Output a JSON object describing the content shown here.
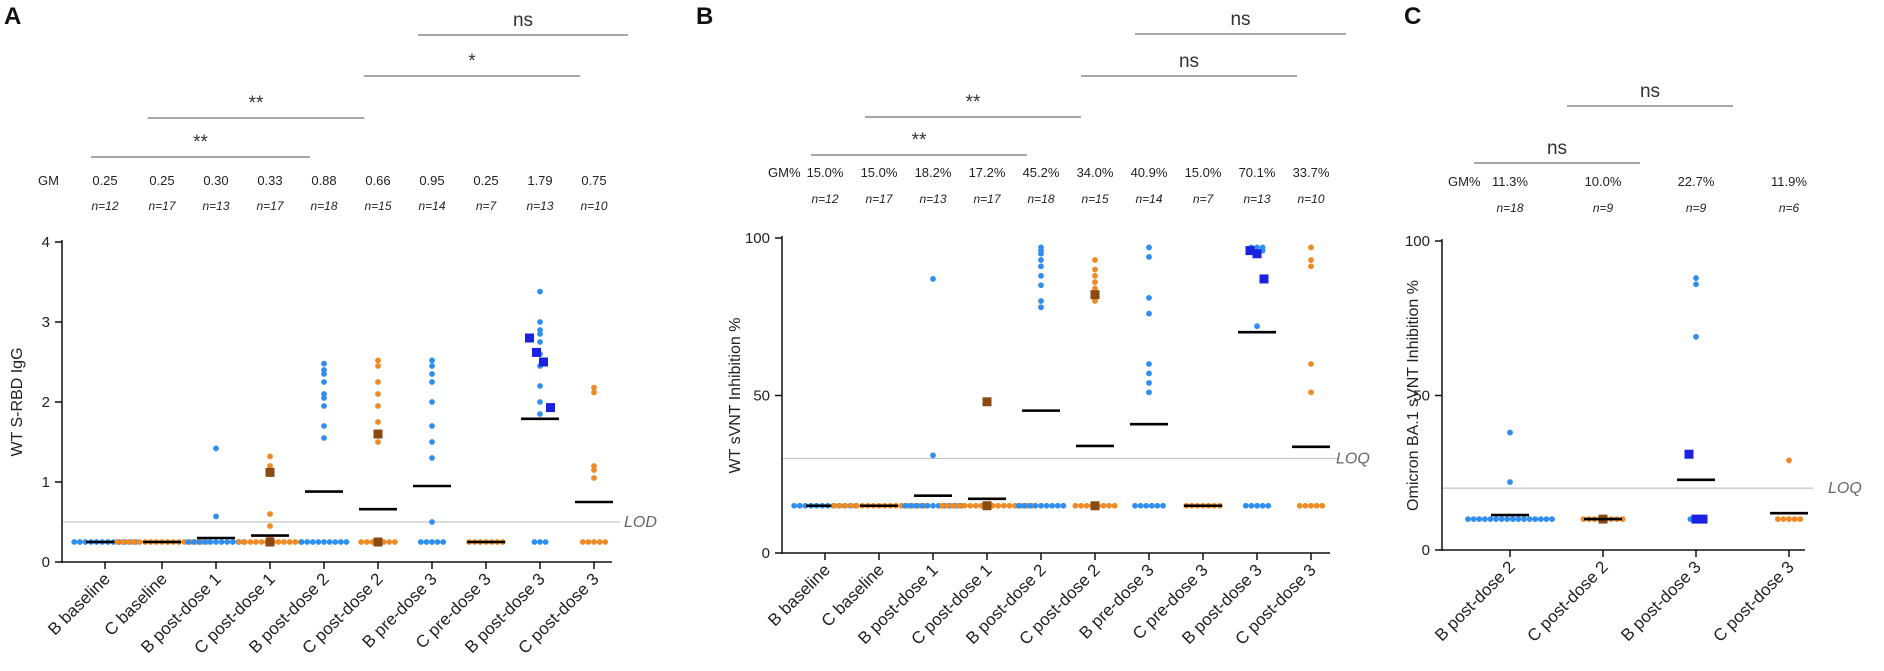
{
  "colors": {
    "b_point": "#2f8ff0",
    "c_point": "#f08a24",
    "b_square": "#1a22e0",
    "c_square": "#8a4a12",
    "mean": "#000000",
    "limit": "#c8c8c8",
    "bracket": "#8a8a8a"
  },
  "chart_data": [
    {
      "panel": "A",
      "type": "scatter",
      "ylabel": "WT S-RBD IgG",
      "ylim": [
        0,
        4
      ],
      "yticks": [
        0,
        1,
        2,
        3,
        4
      ],
      "stat_label": "GM",
      "categories": [
        "B baseline",
        "C baseline",
        "B post-dose 1",
        "C post-dose 1",
        "B post-dose 2",
        "C post-dose 2",
        "B pre-dose 3",
        "C pre-dose 3",
        "B post-dose 3",
        "C post-dose 3"
      ],
      "groups": [
        "B",
        "C",
        "B",
        "C",
        "B",
        "C",
        "B",
        "C",
        "B",
        "C"
      ],
      "stats": [
        "0.25",
        "0.25",
        "0.30",
        "0.33",
        "0.88",
        "0.66",
        "0.95",
        "0.25",
        "1.79",
        "0.75"
      ],
      "n": [
        "n=12",
        "n=17",
        "n=13",
        "n=17",
        "n=18",
        "n=15",
        "n=14",
        "n=7",
        "n=13",
        "n=10"
      ],
      "means": [
        0.25,
        0.25,
        0.3,
        0.33,
        0.88,
        0.66,
        0.95,
        0.25,
        1.79,
        0.75
      ],
      "limit_line": {
        "label": "LOD",
        "value": 0.5
      },
      "points": [
        [
          0.25,
          0.25,
          0.25,
          0.25,
          0.25,
          0.25,
          0.25,
          0.25,
          0.25,
          0.25,
          0.25,
          0.25
        ],
        [
          0.25,
          0.25,
          0.25,
          0.25,
          0.25,
          0.25,
          0.25,
          0.25,
          0.25,
          0.25,
          0.25,
          0.25,
          0.25,
          0.25,
          0.25,
          0.25,
          0.25
        ],
        [
          1.42,
          0.57,
          0.25,
          0.25,
          0.25,
          0.25,
          0.25,
          0.25,
          0.25,
          0.25,
          0.25,
          0.25,
          0.25
        ],
        [
          1.32,
          1.2,
          0.6,
          0.45,
          0.3,
          0.25,
          0.25,
          0.25,
          0.25,
          0.25,
          0.25,
          0.25,
          0.25,
          0.25,
          0.25,
          0.25,
          0.25
        ],
        [
          2.48,
          2.4,
          2.35,
          2.25,
          2.1,
          2.05,
          1.95,
          1.7,
          1.55,
          0.25,
          0.25,
          0.25,
          0.25,
          0.25,
          0.25,
          0.25,
          0.25,
          0.25
        ],
        [
          2.52,
          2.45,
          2.25,
          2.1,
          1.95,
          1.75,
          1.6,
          1.5,
          0.25,
          0.25,
          0.25,
          0.25,
          0.25,
          0.25,
          0.25
        ],
        [
          2.52,
          2.45,
          2.35,
          2.25,
          2.0,
          1.7,
          1.5,
          1.3,
          0.5,
          0.25,
          0.25,
          0.25,
          0.25,
          0.25
        ],
        [
          0.25,
          0.25,
          0.25,
          0.25,
          0.25,
          0.25,
          0.25
        ],
        [
          3.38,
          3.0,
          2.9,
          2.85,
          2.75,
          2.6,
          2.45,
          2.2,
          2.0,
          1.85,
          0.25,
          0.25,
          0.25
        ],
        [
          2.18,
          2.12,
          1.2,
          1.15,
          1.05,
          0.25,
          0.25,
          0.25,
          0.25,
          0.25
        ]
      ],
      "squares": [
        [],
        [],
        [],
        [
          1.12,
          0.25
        ],
        [],
        [
          1.6,
          0.25
        ],
        [],
        [],
        [
          2.8,
          2.62,
          2.5,
          1.93
        ],
        []
      ],
      "comparisons": [
        {
          "from": 0,
          "to": 4,
          "label": "**"
        },
        {
          "from": 1,
          "to": 5,
          "label": "**"
        },
        {
          "from": 5,
          "to": 9,
          "label": "*"
        },
        {
          "from": 6,
          "to": 10,
          "label": "ns"
        }
      ]
    },
    {
      "panel": "B",
      "type": "scatter",
      "ylabel": "WT sVNT Inhibition %",
      "ylim": [
        0,
        100
      ],
      "yticks": [
        0,
        50,
        100
      ],
      "stat_label": "GM%",
      "categories": [
        "B baseline",
        "C baseline",
        "B post-dose 1",
        "C post-dose 1",
        "B post-dose 2",
        "C post-dose 2",
        "B pre-dose 3",
        "C pre-dose 3",
        "B post-dose 3",
        "C post-dose 3"
      ],
      "groups": [
        "B",
        "C",
        "B",
        "C",
        "B",
        "C",
        "B",
        "C",
        "B",
        "C"
      ],
      "stats": [
        "15.0%",
        "15.0%",
        "18.2%",
        "17.2%",
        "45.2%",
        "34.0%",
        "40.9%",
        "15.0%",
        "70.1%",
        "33.7%"
      ],
      "n": [
        "n=12",
        "n=17",
        "n=13",
        "n=17",
        "n=18",
        "n=15",
        "n=14",
        "n=7",
        "n=13",
        "n=10"
      ],
      "means": [
        15.0,
        15.0,
        18.2,
        17.2,
        45.2,
        34.0,
        40.9,
        15.0,
        70.1,
        33.7
      ],
      "limit_line": {
        "label": "LOQ",
        "value": 30
      },
      "points": [
        [
          15,
          15,
          15,
          15,
          15,
          15,
          15,
          15,
          15,
          15,
          15,
          15
        ],
        [
          15,
          15,
          15,
          15,
          15,
          15,
          15,
          15,
          15,
          15,
          15,
          15,
          15,
          15,
          15,
          15,
          15
        ],
        [
          87,
          31,
          15,
          15,
          15,
          15,
          15,
          15,
          15,
          15,
          15,
          15,
          15
        ],
        [
          15,
          15,
          15,
          15,
          15,
          15,
          15,
          15,
          15,
          15,
          15,
          15,
          15,
          15,
          15,
          15,
          15
        ],
        [
          97,
          96,
          95,
          93,
          91,
          88,
          85,
          80,
          78,
          15,
          15,
          15,
          15,
          15,
          15,
          15,
          15,
          15
        ],
        [
          93,
          90,
          88,
          86,
          84,
          82,
          80,
          15,
          15,
          15,
          15,
          15,
          15,
          15,
          15
        ],
        [
          97,
          94,
          81,
          76,
          60,
          57,
          54,
          51,
          15,
          15,
          15,
          15,
          15,
          15
        ],
        [
          15,
          15,
          15,
          15,
          15,
          15,
          15
        ],
        [
          97,
          97,
          97,
          96,
          96,
          96,
          95,
          72,
          15,
          15,
          15,
          15,
          15
        ],
        [
          97,
          93,
          91,
          60,
          51,
          15,
          15,
          15,
          15,
          15
        ]
      ],
      "squares": [
        [],
        [],
        [],
        [
          48,
          15
        ],
        [],
        [
          82,
          15
        ],
        [],
        [],
        [
          96,
          95,
          87
        ],
        []
      ],
      "comparisons": [
        {
          "from": 0,
          "to": 4,
          "label": "**"
        },
        {
          "from": 1,
          "to": 5,
          "label": "**"
        },
        {
          "from": 5,
          "to": 9,
          "label": "ns"
        },
        {
          "from": 6,
          "to": 10,
          "label": "ns"
        }
      ]
    },
    {
      "panel": "C",
      "type": "scatter",
      "ylabel": "Omicron BA.1 sVNT Inhibition %",
      "ylim": [
        0,
        100
      ],
      "yticks": [
        0,
        50,
        100
      ],
      "stat_label": "GM%",
      "categories": [
        "B post-dose 2",
        "C post-dose 2",
        "B post-dose 3",
        "C post-dose 3"
      ],
      "groups": [
        "B",
        "C",
        "B",
        "C"
      ],
      "stats": [
        "11.3%",
        "10.0%",
        "22.7%",
        "11.9%"
      ],
      "n": [
        "n=18",
        "n=9",
        "n=9",
        "n=6"
      ],
      "means": [
        11.3,
        10.0,
        22.7,
        11.9
      ],
      "limit_line": {
        "label": "LOQ",
        "value": 20
      },
      "points": [
        [
          38,
          22,
          10,
          10,
          10,
          10,
          10,
          10,
          10,
          10,
          10,
          10,
          10,
          10,
          10,
          10,
          10,
          10
        ],
        [
          10,
          10,
          10,
          10,
          10,
          10,
          10,
          10
        ],
        [
          88,
          86,
          69,
          10,
          10,
          10
        ],
        [
          29,
          10,
          10,
          10,
          10,
          10
        ]
      ],
      "squares": [
        [],
        [
          10
        ],
        [
          31,
          10,
          10
        ],
        []
      ],
      "comparisons": [
        {
          "from": 0,
          "to": 2,
          "label": "ns"
        },
        {
          "from": 1,
          "to": 3,
          "label": "ns"
        }
      ]
    }
  ]
}
